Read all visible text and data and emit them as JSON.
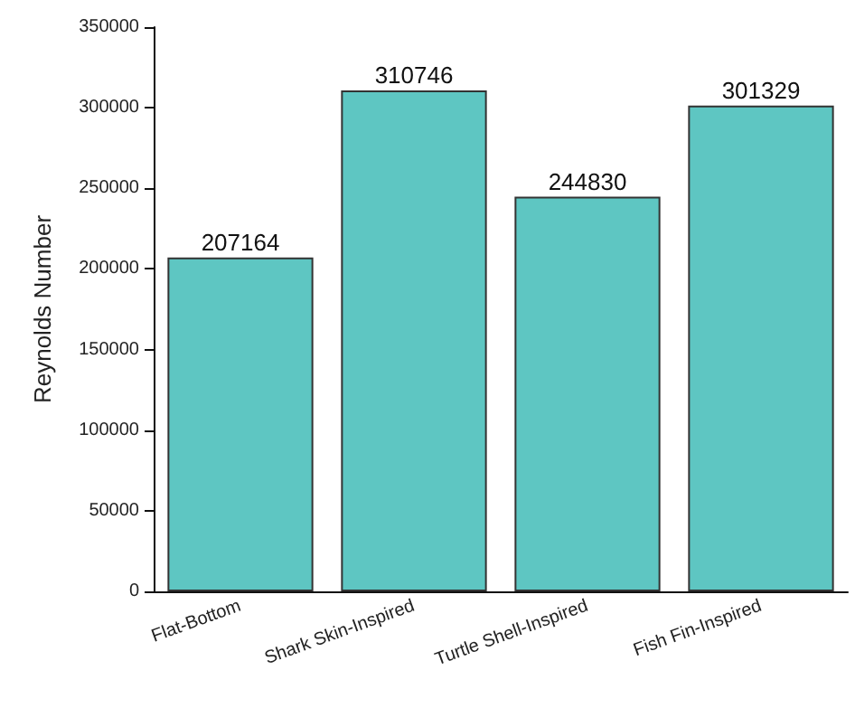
{
  "chart_data": {
    "type": "bar",
    "ylabel": "Reynolds Number",
    "categories": [
      "Flat-Bottom",
      "Shark Skin-Inspired",
      "Turtle Shell-Inspired",
      "Fish Fin-Inspired"
    ],
    "values": [
      207164,
      310746,
      244830,
      301329
    ],
    "color": "#5ec6c2",
    "ylim": [
      0,
      350000
    ],
    "yticks": [
      0,
      50000,
      100000,
      150000,
      200000,
      250000,
      300000,
      350000
    ],
    "data_labels": true
  }
}
